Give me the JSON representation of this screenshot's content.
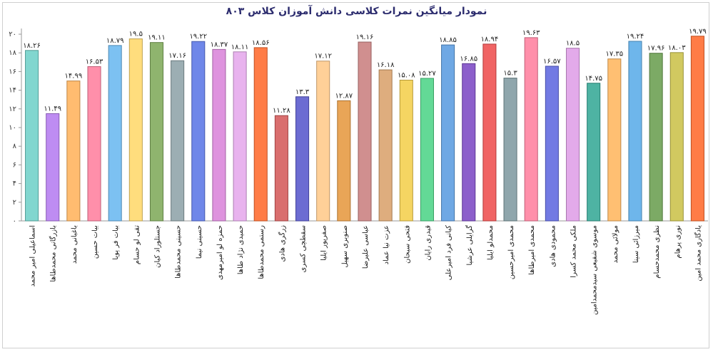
{
  "chart_data": {
    "type": "bar",
    "title": "نمودار میانگین نمرات کلاسی دانش آموزان کلاس ۸۰۳",
    "ylim": [
      0,
      20
    ],
    "yticks": [
      0,
      2,
      4,
      6,
      8,
      10,
      12,
      14,
      16,
      18,
      20
    ],
    "ytick_labels": [
      "۰",
      "۲",
      "۴",
      "۶",
      "۸",
      "۱۰",
      "۱۲",
      "۱۴",
      "۱۶",
      "۱۸",
      "۲۰"
    ],
    "grid": false,
    "categories": [
      "اسماعیلی امیر محمد",
      "بازرگانی محمدطاها",
      "باغبانی محمد",
      "بیات حسین",
      "بیات فر پویا",
      "تقی لو حسام",
      "جستلوراد کیان",
      "حسینی محمدطاها",
      "حسینی نیما",
      "حمزه لو امیرمهدی",
      "حمیدی نژاد طاها",
      "رستمی محمدطاها",
      "زرگری هادی",
      "سقطچی کسری",
      "صفرپور ایلیا",
      "صنوبری سهیل",
      "عباسی علیرضا",
      "عزت نیا عماد",
      "فتحی سبحان",
      "قیدری رایان",
      "کیانی فرد امیرعلی",
      "گرایلی عرشیا",
      "محمدلو ایلیا",
      "محمدی امیرحسین",
      "محمدی امیرطاها",
      "محمودی هادی",
      "ملکی محمد کسرا",
      "موسوی شفیعی سیدمحمدامین",
      "مولائی محمد",
      "میرزائی سینا",
      "نظری محمدحسام",
      "نوری پرهام",
      "یادگاری محمد امین"
    ],
    "values": [
      18.26,
      11.49,
      14.99,
      16.53,
      18.79,
      19.5,
      19.11,
      17.16,
      19.22,
      18.37,
      18.11,
      18.56,
      11.28,
      13.3,
      17.12,
      12.87,
      19.16,
      16.18,
      15.08,
      15.27,
      18.85,
      16.85,
      18.94,
      15.3,
      19.63,
      16.57,
      18.5,
      14.75,
      17.35,
      19.24,
      17.96,
      18.03,
      19.79
    ],
    "value_labels": [
      "۱۸.۲۶",
      "۱۱.۴۹",
      "۱۴.۹۹",
      "۱۶.۵۳",
      "۱۸.۷۹",
      "۱۹.۵",
      "۱۹.۱۱",
      "۱۷.۱۶",
      "۱۹.۲۲",
      "۱۸.۳۷",
      "۱۸.۱۱",
      "۱۸.۵۶",
      "۱۱.۲۸",
      "۱۳.۳",
      "۱۷.۱۲",
      "۱۲.۸۷",
      "۱۹.۱۶",
      "۱۶.۱۸",
      "۱۵.۰۸",
      "۱۵.۲۷",
      "۱۸.۸۵",
      "۱۶.۸۵",
      "۱۸.۹۴",
      "۱۵.۳",
      "۱۹.۶۳",
      "۱۶.۵۷",
      "۱۸.۵",
      "۱۴.۷۵",
      "۱۷.۳۵",
      "۱۹.۲۴",
      "۱۷.۹۶",
      "۱۸.۰۳",
      "۱۹.۷۹"
    ],
    "colors": [
      "#6fd0c8",
      "#b57cf0",
      "#ffb35c",
      "#ff7f9e",
      "#6ab8f0",
      "#ffd86b",
      "#7faa5a",
      "#8ea3a8",
      "#5b76e6",
      "#d984d9",
      "#e5a9ec",
      "#ff6a2c",
      "#d45a5a",
      "#5858cc",
      "#ffc98a",
      "#e69840",
      "#c98080",
      "#d9a26c",
      "#f4cf4c",
      "#4dd487",
      "#5b9ce0",
      "#7c49c4",
      "#ee4f4f",
      "#7f9aa0",
      "#ff7f9e",
      "#5f68df",
      "#df9ee7",
      "#35a896",
      "#ffb65e",
      "#5aace8",
      "#6a9e50",
      "#cbc24a",
      "#ff6a2c"
    ]
  }
}
